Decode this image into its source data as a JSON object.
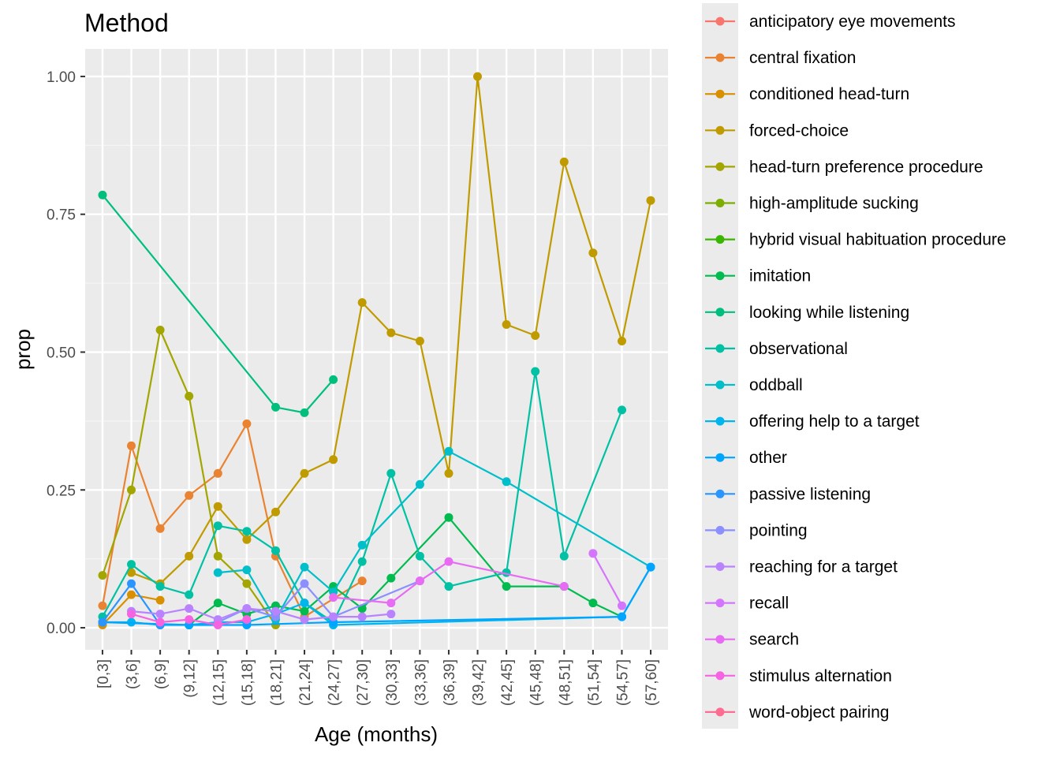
{
  "chart_data": {
    "type": "line",
    "title": "Method",
    "xlabel": "Age (months)",
    "ylabel": "prop",
    "ylim": [
      -0.04,
      1.05
    ],
    "yticks": [
      0,
      0.25,
      0.5,
      0.75,
      1.0
    ],
    "ytick_labels": [
      "0.00",
      "0.25",
      "0.50",
      "0.75",
      "1.00"
    ],
    "grid": true,
    "legend_position": "right",
    "categories": [
      "[0,3]",
      "(3,6]",
      "(6,9]",
      "(9,12]",
      "(12,15]",
      "(15,18]",
      "(18,21]",
      "(21,24]",
      "(24,27]",
      "(27,30]",
      "(30,33]",
      "(33,36]",
      "(36,39]",
      "(39,42]",
      "(42,45]",
      "(45,48]",
      "(48,51]",
      "(51,54]",
      "(54,57]",
      "(57,60]"
    ],
    "series": [
      {
        "name": "anticipatory eye movements",
        "color": "#F8766D",
        "values": [
          null,
          null,
          null,
          null,
          null,
          null,
          null,
          null,
          null,
          null,
          null,
          null,
          null,
          null,
          null,
          null,
          null,
          null,
          null,
          null
        ]
      },
      {
        "name": "central fixation",
        "color": "#EA8331",
        "values": [
          0.04,
          0.33,
          0.18,
          0.24,
          0.28,
          0.37,
          0.13,
          0.02,
          null,
          0.085,
          null,
          null,
          null,
          null,
          null,
          null,
          null,
          null,
          null,
          null
        ]
      },
      {
        "name": "conditioned head-turn",
        "color": "#D89000",
        "values": [
          0.005,
          0.06,
          0.05,
          null,
          null,
          null,
          null,
          null,
          null,
          null,
          null,
          null,
          null,
          null,
          null,
          null,
          null,
          null,
          null,
          null
        ]
      },
      {
        "name": "forced-choice",
        "color": "#C09B00",
        "values": [
          null,
          0.1,
          0.08,
          0.13,
          0.22,
          0.16,
          0.21,
          0.28,
          0.305,
          0.59,
          0.535,
          0.52,
          0.28,
          1.0,
          0.55,
          0.53,
          0.845,
          0.68,
          0.52,
          0.775
        ]
      },
      {
        "name": "head-turn preference procedure",
        "color": "#A3A500",
        "values": [
          0.095,
          0.25,
          0.54,
          0.42,
          0.13,
          0.08,
          0.005,
          null,
          null,
          null,
          null,
          null,
          null,
          null,
          null,
          null,
          null,
          null,
          null,
          null
        ]
      },
      {
        "name": "high-amplitude sucking",
        "color": "#7CAE00",
        "values": [
          null,
          null,
          null,
          null,
          null,
          null,
          null,
          null,
          null,
          null,
          null,
          null,
          null,
          null,
          null,
          null,
          null,
          null,
          null,
          null
        ]
      },
      {
        "name": "hybrid visual habituation procedure",
        "color": "#39B600",
        "values": [
          null,
          null,
          null,
          null,
          null,
          null,
          null,
          null,
          null,
          null,
          null,
          null,
          null,
          null,
          null,
          null,
          null,
          null,
          null,
          null
        ]
      },
      {
        "name": "imitation",
        "color": "#00BB4E",
        "values": [
          null,
          null,
          null,
          0.005,
          0.045,
          0.025,
          0.04,
          0.03,
          0.075,
          0.035,
          0.09,
          null,
          0.2,
          null,
          0.075,
          null,
          0.075,
          0.045,
          0.02,
          null
        ]
      },
      {
        "name": "looking while listening",
        "color": "#00BF7D",
        "values": [
          0.785,
          null,
          null,
          null,
          null,
          null,
          0.4,
          0.39,
          0.45,
          null,
          null,
          null,
          null,
          null,
          null,
          null,
          null,
          null,
          null,
          null
        ]
      },
      {
        "name": "observational",
        "color": "#00C1A3",
        "values": [
          0.02,
          0.115,
          0.075,
          0.06,
          0.185,
          0.175,
          0.14,
          0.045,
          0.01,
          0.12,
          0.28,
          0.13,
          0.075,
          null,
          0.1,
          0.465,
          0.13,
          null,
          0.395,
          null
        ]
      },
      {
        "name": "oddball",
        "color": "#00BECA",
        "values": [
          null,
          null,
          null,
          null,
          0.1,
          0.105,
          0.015,
          0.11,
          0.065,
          0.15,
          null,
          0.26,
          0.32,
          null,
          0.265,
          null,
          null,
          null,
          null,
          0.11
        ]
      },
      {
        "name": "offering help to a target",
        "color": "#00B5EE",
        "values": [
          0.01,
          0.01,
          0.005,
          0.005,
          0.01,
          0.01,
          0.025,
          0.045,
          0.005,
          null,
          null,
          null,
          null,
          null,
          null,
          null,
          null,
          null,
          0.02,
          0.11
        ]
      },
      {
        "name": "other",
        "color": "#00A5FF",
        "values": [
          0.01,
          null,
          null,
          0.005,
          null,
          0.005,
          null,
          null,
          0.01,
          null,
          null,
          null,
          null,
          null,
          null,
          null,
          null,
          null,
          0.02,
          0.11
        ]
      },
      {
        "name": "passive listening",
        "color": "#2B95FF",
        "values": [
          0.01,
          0.08,
          0.005,
          null,
          null,
          null,
          null,
          null,
          null,
          null,
          null,
          null,
          null,
          null,
          null,
          null,
          null,
          null,
          null,
          null
        ]
      },
      {
        "name": "pointing",
        "color": "#8B8FFF",
        "values": [
          null,
          null,
          null,
          null,
          0.01,
          0.035,
          0.02,
          0.08,
          0.02,
          null,
          null,
          0.085,
          null,
          null,
          null,
          null,
          null,
          null,
          null,
          null
        ]
      },
      {
        "name": "reaching for a target",
        "color": "#B983FF",
        "values": [
          null,
          0.03,
          0.025,
          0.035,
          0.015,
          0.035,
          0.03,
          0.015,
          0.02,
          0.02,
          0.025,
          null,
          null,
          null,
          null,
          null,
          null,
          null,
          null,
          null
        ]
      },
      {
        "name": "recall",
        "color": "#D575FE",
        "values": [
          null,
          null,
          null,
          null,
          null,
          null,
          null,
          null,
          null,
          null,
          null,
          null,
          null,
          null,
          null,
          null,
          null,
          0.135,
          0.04,
          null
        ]
      },
      {
        "name": "search",
        "color": "#E76BF3",
        "values": [
          null,
          null,
          null,
          null,
          null,
          null,
          null,
          null,
          0.055,
          null,
          0.045,
          0.085,
          0.12,
          null,
          null,
          null,
          0.075,
          null,
          null,
          null
        ]
      },
      {
        "name": "stimulus alternation",
        "color": "#F563E3",
        "values": [
          null,
          0.025,
          0.01,
          0.015,
          0.005,
          0.015,
          null,
          null,
          null,
          null,
          null,
          null,
          null,
          null,
          null,
          null,
          null,
          null,
          null,
          null
        ]
      },
      {
        "name": "word-object pairing",
        "color": "#FF6C91",
        "values": [
          null,
          null,
          null,
          null,
          null,
          null,
          null,
          null,
          null,
          null,
          null,
          null,
          null,
          null,
          null,
          null,
          null,
          null,
          null,
          null
        ]
      }
    ]
  }
}
